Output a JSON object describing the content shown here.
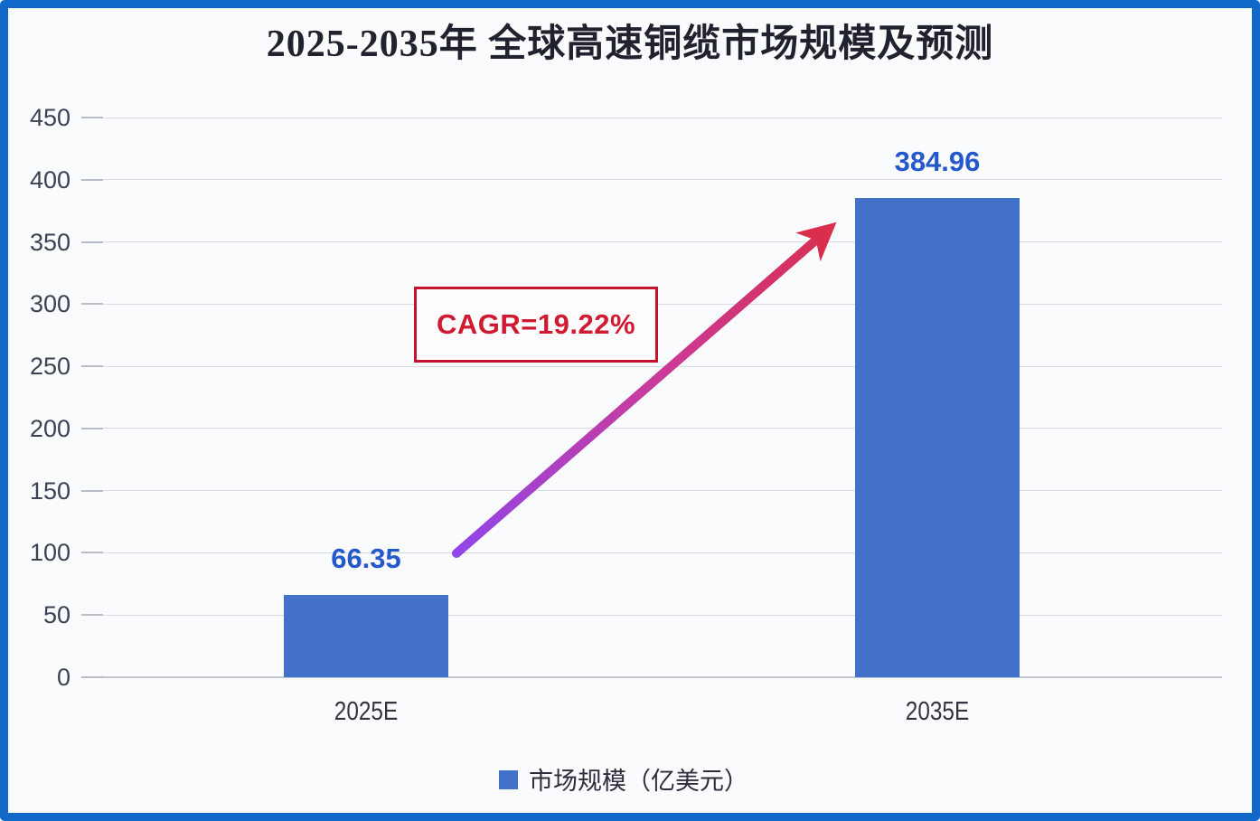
{
  "title": "2025-2035年 全球高速铜缆市场规模及预测",
  "annotation": {
    "cagr_label": "CAGR=19.22%"
  },
  "legend": {
    "swatch": "blue-square",
    "label": "市场规模（亿美元）"
  },
  "colors": {
    "bar": "#4370c9",
    "frame_border": "#1268c8",
    "data_label": "#2458cb",
    "cagr_text": "#d01a32",
    "cagr_border": "#c3122c",
    "arrow_gradient_start": "#8f46e8",
    "arrow_gradient_mid": "#c93b9d",
    "arrow_gradient_end": "#d92e4c",
    "axis_text": "#3c4254",
    "gridline": "#d9dde3"
  },
  "chart_data": {
    "type": "bar",
    "title": "2025-2035年 全球高速铜缆市场规模及预测",
    "categories": [
      "2025E",
      "2035E"
    ],
    "series": [
      {
        "name": "市场规模（亿美元）",
        "values": [
          66.35,
          384.96
        ]
      }
    ],
    "data_labels": [
      "66.35",
      "384.96"
    ],
    "xlabel": "",
    "ylabel": "",
    "ylim": [
      0,
      450
    ],
    "yticks": [
      0,
      50,
      100,
      150,
      200,
      250,
      300,
      350,
      400,
      450
    ],
    "grid": true,
    "legend_position": "bottom",
    "annotation": "CAGR=19.22%"
  }
}
